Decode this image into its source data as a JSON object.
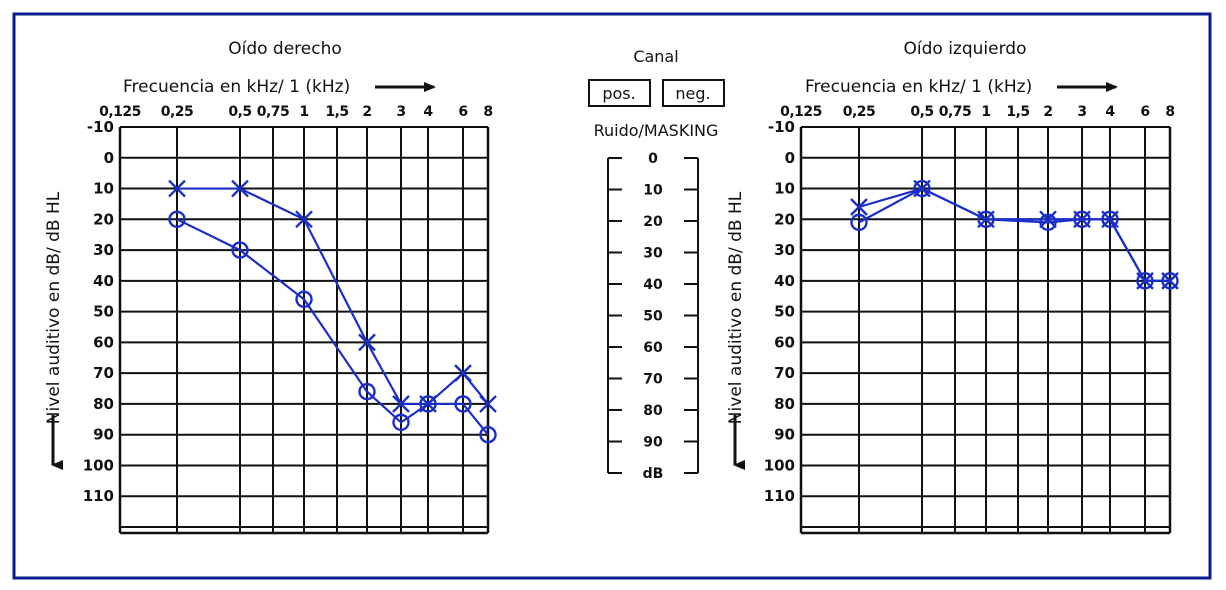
{
  "colors": {
    "border": "#0a1a8c",
    "data": "#1a2ec8",
    "grid": "#111111",
    "background": "#ffffff"
  },
  "chart_data": [
    {
      "type": "line",
      "title": "Oído derecho",
      "xlabel": "Frecuencia en kHz/ 1 (kHz)",
      "ylabel": "Nivel auditivo en dB/ dB HL",
      "x_tick_labels": [
        "0,125",
        "0,25",
        "0,5",
        "0,75",
        "1",
        "1,5",
        "2",
        "3",
        "4",
        "6",
        "8"
      ],
      "x_kHz": [
        0.125,
        0.25,
        0.5,
        0.75,
        1,
        1.5,
        2,
        3,
        4,
        6,
        8
      ],
      "y_tick_labels": [
        "-10",
        "0",
        "10",
        "20",
        "30",
        "40",
        "50",
        "60",
        "70",
        "80",
        "90",
        "100",
        "110"
      ],
      "ylim": [
        -10,
        120
      ],
      "y_inverted": true,
      "grid": true,
      "series": [
        {
          "marker": "x",
          "x_kHz": [
            0.25,
            0.5,
            1,
            2,
            3,
            4,
            6,
            8
          ],
          "values": [
            10,
            10,
            20,
            60,
            80,
            80,
            70,
            80
          ]
        },
        {
          "marker": "o",
          "x_kHz": [
            0.25,
            0.5,
            1,
            2,
            3,
            4,
            6,
            8
          ],
          "values": [
            20,
            30,
            46,
            76,
            86,
            80,
            80,
            90
          ]
        }
      ]
    },
    {
      "type": "line",
      "title": "Oído izquierdo",
      "xlabel": "Frecuencia en kHz/ 1 (kHz)",
      "ylabel": "Nivel auditivo en dB/ dB HL",
      "x_tick_labels": [
        "0,125",
        "0,25",
        "0,5",
        "0,75",
        "1",
        "1,5",
        "2",
        "3",
        "4",
        "6",
        "8"
      ],
      "x_kHz": [
        0.125,
        0.25,
        0.5,
        0.75,
        1,
        1.5,
        2,
        3,
        4,
        6,
        8
      ],
      "y_tick_labels": [
        "-10",
        "0",
        "10",
        "20",
        "30",
        "40",
        "50",
        "60",
        "70",
        "80",
        "90",
        "100",
        "110"
      ],
      "ylim": [
        -10,
        120
      ],
      "y_inverted": true,
      "grid": true,
      "series": [
        {
          "marker": "x",
          "x_kHz": [
            0.25,
            0.5,
            1,
            2,
            3,
            4,
            6,
            8
          ],
          "values": [
            16,
            10,
            20,
            20,
            20,
            20,
            40,
            40
          ]
        },
        {
          "marker": "o",
          "x_kHz": [
            0.25,
            0.5,
            1,
            2,
            3,
            4,
            6,
            8
          ],
          "values": [
            21,
            10,
            20,
            21,
            20,
            20,
            40,
            40
          ]
        }
      ]
    }
  ],
  "middle": {
    "canal_label": "Canal",
    "pos_label": "pos.",
    "neg_label": "neg.",
    "masking_label": "Ruido/MASKING",
    "masking_scale": [
      "0",
      "10",
      "20",
      "30",
      "40",
      "50",
      "60",
      "70",
      "80",
      "90",
      "dB"
    ]
  }
}
